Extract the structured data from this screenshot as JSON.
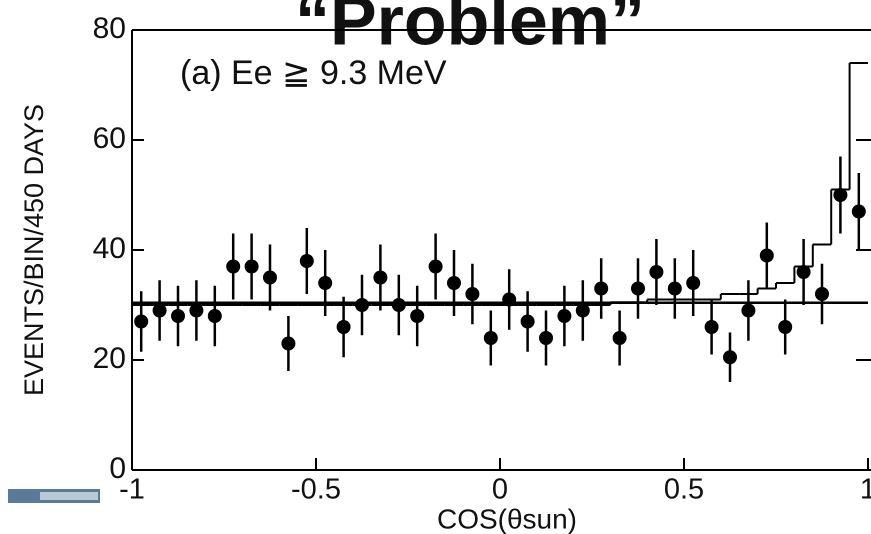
{
  "chart_data": {
    "type": "scatter",
    "title": "“Problem”",
    "annotation": "(a) Ee ≧ 9.3 MeV",
    "x_label": "COS(θsun)",
    "y_label": "EVENTS/BIN/450 DAYS",
    "xlim": [
      -1,
      1
    ],
    "ylim": [
      0,
      80
    ],
    "xticks": [
      -1,
      -0.5,
      0,
      0.5,
      1
    ],
    "yticks": [
      0,
      20,
      40,
      60,
      80
    ],
    "series": [
      {
        "type": "errorbar",
        "color": "#000000",
        "x": [
          -0.975,
          -0.925,
          -0.875,
          -0.825,
          -0.775,
          -0.725,
          -0.675,
          -0.625,
          -0.575,
          -0.525,
          -0.475,
          -0.425,
          -0.375,
          -0.325,
          -0.275,
          -0.225,
          -0.175,
          -0.125,
          -0.075,
          -0.025,
          0.025,
          0.075,
          0.125,
          0.175,
          0.225,
          0.275,
          0.325,
          0.375,
          0.425,
          0.475,
          0.525,
          0.575,
          0.625,
          0.675,
          0.725,
          0.775,
          0.825,
          0.875,
          0.925,
          0.975
        ],
        "values": [
          27,
          29,
          28,
          29,
          28,
          37,
          37,
          35,
          23,
          38,
          34,
          26,
          30,
          35,
          30,
          28,
          37,
          34,
          32,
          24,
          31,
          27,
          24,
          28,
          29,
          33,
          24,
          33,
          36,
          33,
          34,
          26,
          20.5,
          29,
          39,
          26,
          36,
          32,
          50,
          47
        ],
        "errors": [
          5.5,
          5.5,
          5.5,
          5.5,
          5.5,
          6,
          6,
          6,
          5,
          6,
          6,
          5.5,
          5.5,
          6,
          5.5,
          5.5,
          6,
          6,
          5.5,
          5,
          5.5,
          5.5,
          5,
          5.5,
          5.5,
          5.5,
          5,
          5.5,
          6,
          5.5,
          6,
          5,
          4.5,
          5.5,
          6,
          5,
          6,
          5.5,
          7,
          7
        ]
      },
      {
        "type": "step",
        "color": "#000000",
        "bins": [
          -1,
          -0.95,
          -0.9,
          -0.85,
          -0.8,
          -0.75,
          -0.7,
          -0.65,
          -0.6,
          -0.55,
          -0.5,
          -0.45,
          -0.4,
          -0.35,
          -0.3,
          -0.25,
          -0.2,
          -0.15,
          -0.1,
          -0.05,
          0,
          0.05,
          0.1,
          0.15,
          0.2,
          0.25,
          0.3,
          0.35,
          0.4,
          0.45,
          0.5,
          0.55,
          0.6,
          0.65,
          0.7,
          0.75,
          0.8,
          0.85,
          0.9,
          0.95,
          1
        ],
        "values": [
          30,
          30,
          30,
          30,
          30,
          30,
          30,
          30,
          30,
          30,
          30,
          30,
          30,
          30,
          30,
          30,
          30,
          30,
          30,
          30,
          30,
          30,
          30,
          30,
          30,
          30,
          30.5,
          30.5,
          31,
          31,
          31,
          31,
          32,
          32,
          33,
          34,
          37,
          41,
          51,
          74
        ]
      },
      {
        "type": "line",
        "color": "#000000",
        "x": [
          -1,
          1
        ],
        "values": [
          30.4,
          30.4
        ]
      }
    ]
  }
}
